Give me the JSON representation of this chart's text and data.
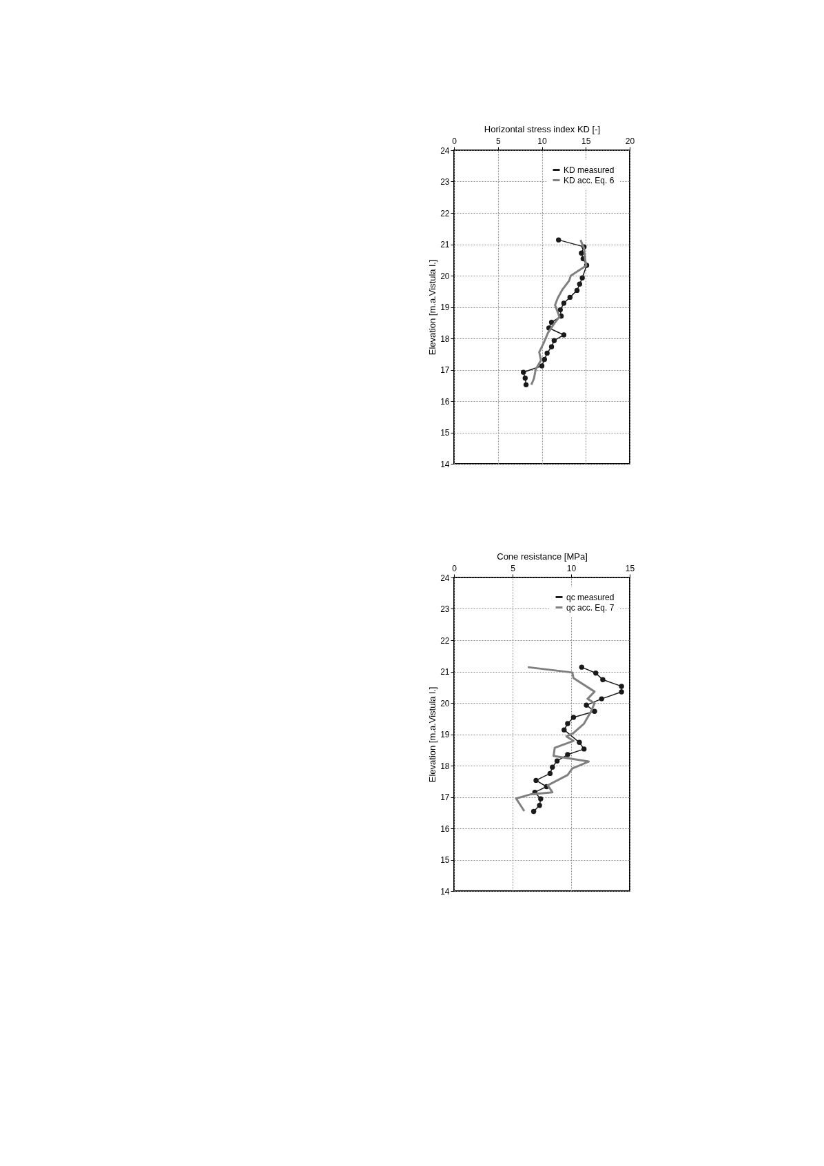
{
  "chart_data": [
    {
      "type": "line",
      "xlabel": "Horizontal  stress index KD [-]",
      "ylabel": "Elevation  [m.a.Vistula  l.]",
      "xlim": [
        0,
        20
      ],
      "xticks": [
        0,
        5,
        10,
        15,
        20
      ],
      "ylim": [
        14,
        24
      ],
      "yticks": [
        14,
        15,
        16,
        17,
        18,
        19,
        20,
        21,
        22,
        23,
        24
      ],
      "grid": true,
      "legend": "top right",
      "line_style": "solid",
      "series": [
        {
          "name": "KD measured",
          "color": "#1a1a1a",
          "marker": "circle",
          "x": [
            11.9,
            14.8,
            14.5,
            14.7,
            15.1,
            14.6,
            14.3,
            14.0,
            13.2,
            12.5,
            12.1,
            12.2,
            11.1,
            10.8,
            12.5,
            11.4,
            11.1,
            10.6,
            10.3,
            10.0,
            7.9,
            8.1,
            8.2
          ],
          "values": [
            21.14,
            20.92,
            20.72,
            20.54,
            20.33,
            19.93,
            19.73,
            19.53,
            19.31,
            19.12,
            18.91,
            18.71,
            18.51,
            18.33,
            18.11,
            17.93,
            17.73,
            17.53,
            17.33,
            17.12,
            16.92,
            16.73,
            16.52
          ]
        },
        {
          "name": "KD acc. Eq. 6",
          "color": "#808080",
          "marker": "none",
          "x": [
            14.4,
            14.8,
            14.9,
            15.05,
            13.3,
            13.1,
            12.3,
            11.8,
            11.5,
            12.0,
            11.4,
            10.7,
            10.2,
            9.7,
            9.9,
            9.3,
            9.1,
            8.8
          ],
          "values": [
            21.14,
            20.87,
            20.57,
            20.32,
            20.0,
            19.84,
            19.54,
            19.28,
            19.06,
            18.69,
            18.47,
            18.18,
            17.85,
            17.56,
            17.3,
            17.01,
            16.72,
            16.52
          ]
        }
      ]
    },
    {
      "type": "line",
      "xlabel": "Cone resistance [MPa]",
      "ylabel": "Elevation  [m.a.Vistula  l.]",
      "xlim": [
        0,
        15
      ],
      "xticks": [
        0,
        5,
        10,
        15
      ],
      "ylim": [
        14,
        24
      ],
      "yticks": [
        14,
        15,
        16,
        17,
        18,
        19,
        20,
        21,
        22,
        23,
        24
      ],
      "grid": true,
      "legend": "top right",
      "line_style": "solid",
      "series": [
        {
          "name": "qc measured",
          "color": "#1a1a1a",
          "marker": "circle",
          "x": [
            10.9,
            12.1,
            12.7,
            14.3,
            14.3,
            12.6,
            11.3,
            12.0,
            10.2,
            9.7,
            9.4,
            10.7,
            11.1,
            9.7,
            8.8,
            8.4,
            8.2,
            7.0,
            7.9,
            6.9,
            7.4,
            7.3,
            6.8
          ],
          "values": [
            21.14,
            20.95,
            20.74,
            20.53,
            20.35,
            20.13,
            19.93,
            19.73,
            19.54,
            19.34,
            19.14,
            18.74,
            18.53,
            18.35,
            18.15,
            17.95,
            17.75,
            17.53,
            17.33,
            17.15,
            16.94,
            16.73,
            16.54
          ]
        },
        {
          "name": "qc acc. Eq. 7",
          "color": "#808080",
          "marker": "none",
          "x": [
            6.3,
            10.1,
            10.2,
            12.0,
            11.4,
            12.0,
            11.7,
            11.1,
            10.2,
            9.6,
            10.2,
            8.6,
            8.5,
            11.5,
            10.1,
            9.7,
            8.0,
            8.4,
            6.5,
            5.3,
            6.0
          ],
          "values": [
            21.14,
            20.97,
            20.79,
            20.36,
            20.13,
            19.99,
            19.73,
            19.34,
            19.04,
            18.93,
            18.79,
            18.57,
            18.31,
            18.13,
            17.91,
            17.7,
            17.37,
            17.15,
            17.08,
            16.95,
            16.55
          ]
        }
      ]
    }
  ]
}
